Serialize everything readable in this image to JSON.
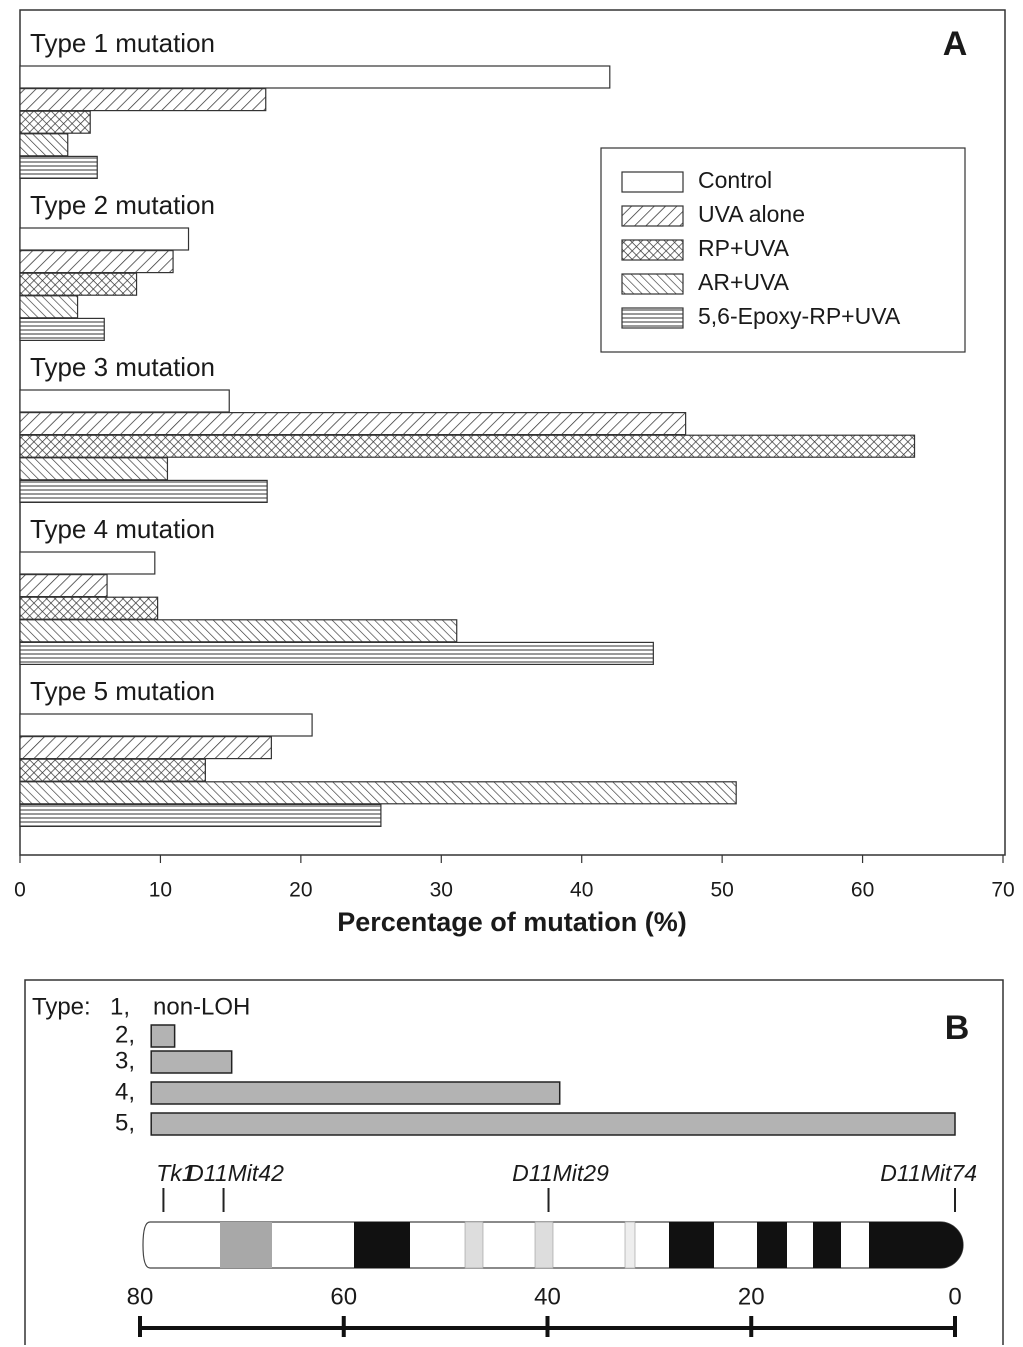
{
  "chart_data": [
    {
      "type": "bar",
      "orientation": "horizontal",
      "panel": "A",
      "xlabel": "Percentage of mutation (%)",
      "categories": [
        "Type 1 mutation",
        "Type 2 mutation",
        "Type 3 mutation",
        "Type 4 mutation",
        "Type 5 mutation"
      ],
      "series": [
        {
          "name": "Control",
          "color": "#ffffff",
          "pattern": "none",
          "values": [
            42.0,
            12.0,
            14.9,
            9.6,
            20.8
          ]
        },
        {
          "name": "UVA alone",
          "color": "#ffffff",
          "pattern": "diagonal",
          "values": [
            17.5,
            10.9,
            47.4,
            6.2,
            17.9
          ]
        },
        {
          "name": "RP+UVA",
          "color": "#ffffff",
          "pattern": "crosshatch",
          "values": [
            5.0,
            8.3,
            63.7,
            9.8,
            13.2
          ]
        },
        {
          "name": "AR+UVA",
          "color": "#ffffff",
          "pattern": "backdiagonal",
          "values": [
            3.4,
            4.1,
            10.5,
            31.1,
            51.0
          ]
        },
        {
          "name": "5,6-Epoxy-RP+UVA",
          "color": "#ffffff",
          "pattern": "horizontal",
          "values": [
            5.5,
            6.0,
            17.6,
            45.1,
            25.7
          ]
        }
      ],
      "xlim": [
        0,
        70
      ],
      "xticks": [
        0,
        10,
        20,
        30,
        40,
        50,
        60,
        70
      ],
      "legend": "upper right"
    },
    {
      "type": "range",
      "panel": "B",
      "label": "Type:",
      "categories": [
        "1,",
        "2,",
        "3,",
        "4,",
        "5,"
      ],
      "annotation": "non-LOH",
      "starts": [
        null,
        78.9,
        78.9,
        78.9,
        78.9
      ],
      "ends": [
        null,
        76.6,
        71.0,
        38.8,
        0
      ],
      "color": "#b3b3b3",
      "markers": [
        {
          "label": "Tk1",
          "value": 77.7
        },
        {
          "label": "D11Mit42",
          "value": 71.8
        },
        {
          "label": "D11Mit29",
          "value": 39.9
        },
        {
          "label": "D11Mit74",
          "value": 0
        }
      ],
      "xlim": [
        80,
        0
      ],
      "xticks": [
        80,
        60,
        40,
        20,
        0
      ]
    }
  ]
}
